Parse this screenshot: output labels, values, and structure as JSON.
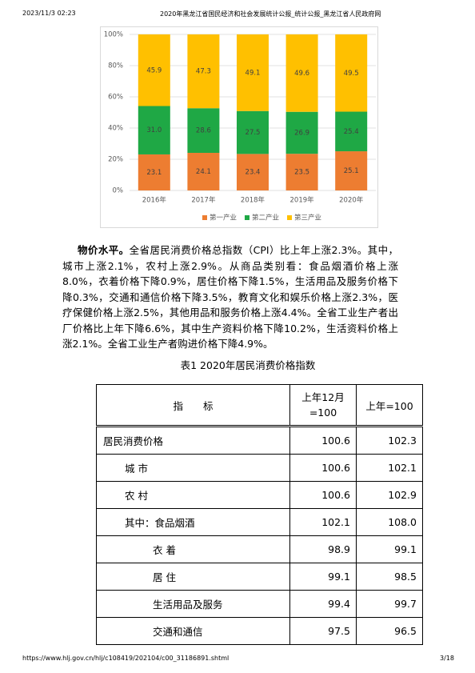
{
  "header": {
    "time": "2023/11/3 02:23",
    "title": "2020年黑龙江省国民经济和社会发展统计公报_统计公报_黑龙江省人民政府网"
  },
  "chart_data": {
    "type": "bar",
    "stacked": true,
    "categories": [
      "2016年",
      "2017年",
      "2018年",
      "2019年",
      "2020年"
    ],
    "series": [
      {
        "name": "第一产业",
        "color": "#ed7d31",
        "values": [
          23.1,
          24.1,
          23.4,
          23.5,
          25.1
        ]
      },
      {
        "name": "第二产业",
        "color": "#1fa845",
        "values": [
          31.0,
          28.6,
          27.5,
          26.9,
          25.4
        ],
        "value_labels": [
          "31.0",
          "28.6",
          "27.5",
          "26.9",
          "25.4"
        ]
      },
      {
        "name": "第三产业",
        "color": "#ffc000",
        "values": [
          45.9,
          47.3,
          49.1,
          49.6,
          49.5
        ]
      }
    ],
    "ylim": [
      0,
      100
    ],
    "yticks": [
      {
        "value": 0,
        "label": "0%"
      },
      {
        "value": 20,
        "label": "20%"
      },
      {
        "value": 40,
        "label": "40%"
      },
      {
        "value": 60,
        "label": "60%"
      },
      {
        "value": 80,
        "label": "80%"
      },
      {
        "value": 100,
        "label": "100%"
      }
    ],
    "grid": true,
    "legend": "bottom"
  },
  "paragraph": {
    "lead": "物价水平。",
    "text": "全省居民消费价格总指数（CPI）比上年上涨2.3%。其中，城市上涨2.1%，农村上涨2.9%。从商品类别看：食品烟酒价格上涨8.0%，衣着价格下降0.9%，居住价格下降1.5%，生活用品及服务价格下降0.3%，交通和通信价格下降3.5%，教育文化和娱乐价格上涨2.3%，医疗保健价格上涨2.5%，其他用品和服务价格上涨4.4%。全省工业生产者出厂价格比上年下降6.6%，其中生产资料价格下降10.2%，生活资料价格上涨2.1%。全省工业生产者购进价格下降4.9%。"
  },
  "table": {
    "caption": "表1  2020年居民消费价格指数",
    "header": [
      "指　　标",
      "上年12月=100",
      "上年=100"
    ],
    "rows": [
      [
        "居民消费价格",
        "100.6",
        "102.3"
      ],
      [
        "城 市",
        "100.6",
        "102.1"
      ],
      [
        "农 村",
        "100.6",
        "102.9"
      ],
      [
        "其中：食品烟酒",
        "102.1",
        "108.0"
      ],
      [
        "衣 着",
        "98.9",
        "99.1"
      ],
      [
        "居 住",
        "99.1",
        "98.5"
      ],
      [
        "生活用品及服务",
        "99.4",
        "99.7"
      ],
      [
        "交通和通信",
        "97.5",
        "96.5"
      ]
    ]
  },
  "footer": {
    "url": "https://www.hlj.gov.cn/hlj/c108419/202104/c00_31186891.shtml",
    "page": "3/18"
  }
}
